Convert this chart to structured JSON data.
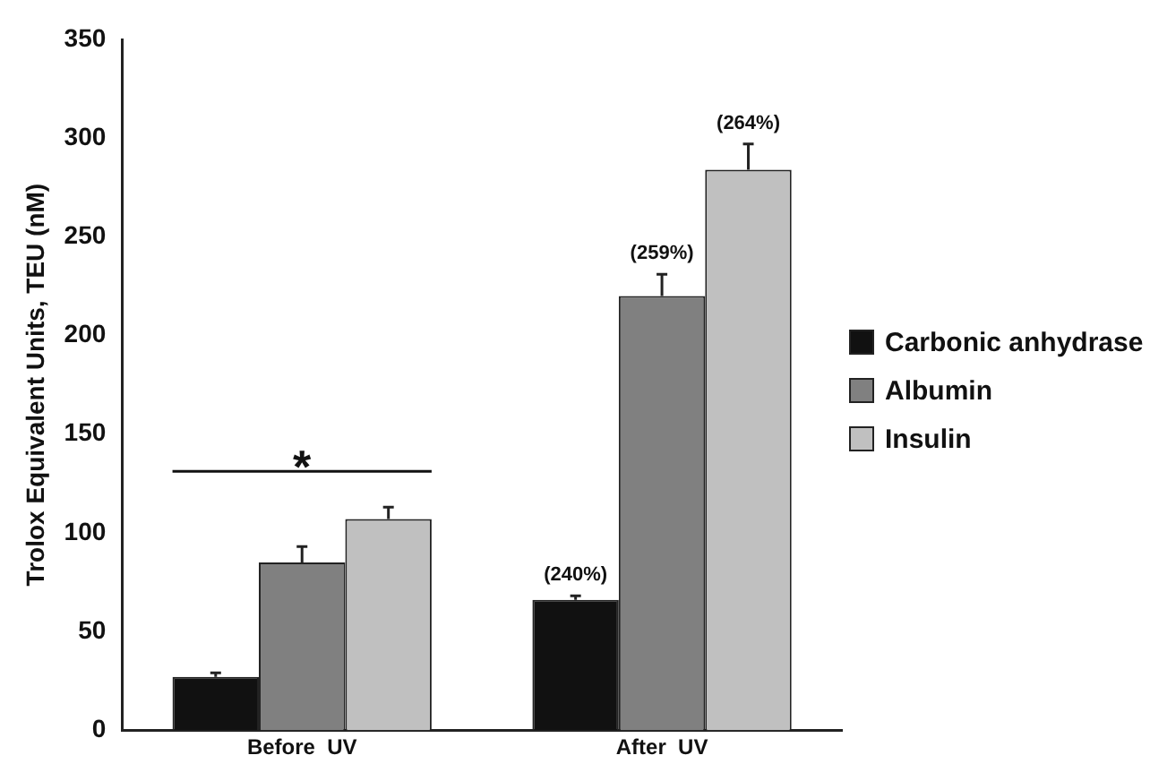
{
  "chart_data": {
    "type": "bar",
    "ylabel": "Trolox Equivalent Units, TEU (nM)",
    "categories": [
      "Before  UV",
      "After  UV"
    ],
    "series": [
      {
        "name": "Carbonic anhydrase",
        "color": "#111111",
        "values": [
          27,
          66
        ],
        "errors": [
          2,
          2
        ]
      },
      {
        "name": "Albumin",
        "color": "#808080",
        "values": [
          85,
          220
        ],
        "errors": [
          8,
          11
        ]
      },
      {
        "name": "Insulin",
        "color": "#c0c0c0",
        "values": [
          107,
          284
        ],
        "errors": [
          6,
          13
        ]
      }
    ],
    "ylim": [
      0,
      350
    ],
    "yticks": [
      0,
      50,
      100,
      150,
      200,
      250,
      300,
      350
    ],
    "grid": false,
    "legend": "right",
    "annotations": [
      "*",
      "(240%)",
      "(259%)",
      "(264%)"
    ]
  }
}
